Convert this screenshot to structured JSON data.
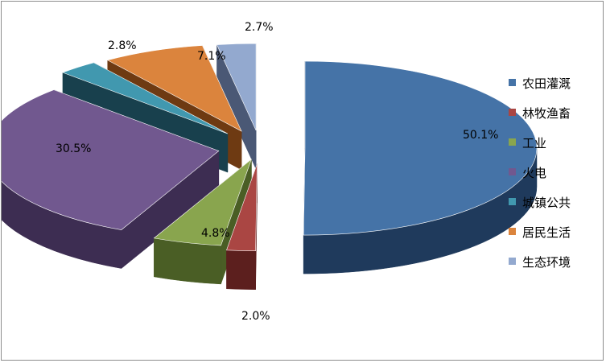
{
  "chart_data": {
    "type": "pie",
    "style": "3d-exploded",
    "title": "",
    "categories": [
      "农田灌溉",
      "林牧渔畜",
      "工业",
      "火电",
      "城镇公共",
      "居民生活",
      "生态环境"
    ],
    "values": [
      50.1,
      2.0,
      4.8,
      30.5,
      2.8,
      7.1,
      2.7
    ],
    "labels": [
      "50.1%",
      "2.0%",
      "4.8%",
      "30.5%",
      "2.8%",
      "7.1%",
      "2.7%"
    ],
    "colors": [
      "#4573a7",
      "#aa4643",
      "#89a54e",
      "#71588f",
      "#4198af",
      "#db843d",
      "#93a9cf"
    ],
    "side_colors": [
      "#1f3a5c",
      "#5c1f1e",
      "#4a5e25",
      "#3d2d52",
      "#18404d",
      "#6e3a12",
      "#4a5875"
    ],
    "legend_position": "right"
  }
}
